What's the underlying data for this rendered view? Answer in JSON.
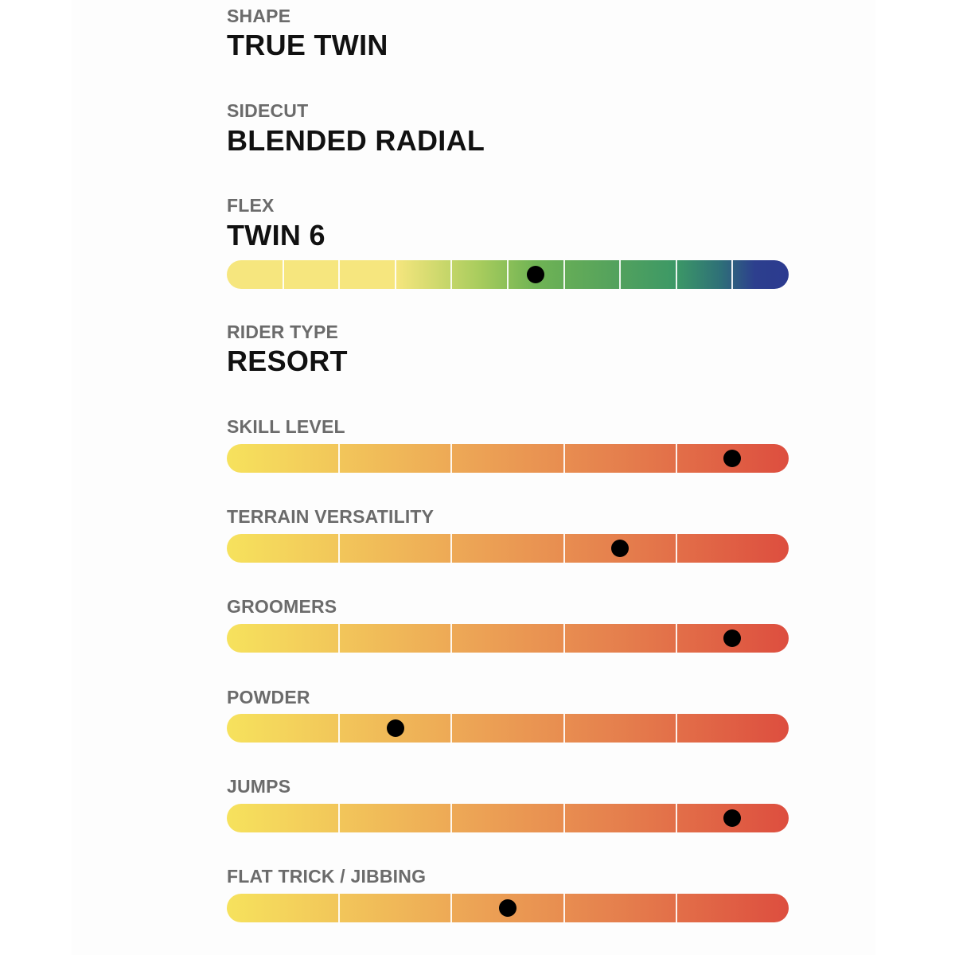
{
  "specs": [
    {
      "key": "shape",
      "label": "SHAPE",
      "value": "TRUE TWIN"
    },
    {
      "key": "sidecut",
      "label": "SIDECUT",
      "value": "BLENDED RADIAL"
    },
    {
      "key": "flex",
      "label": "FLEX",
      "value": "TWIN 6"
    },
    {
      "key": "rider_type",
      "label": "RIDER TYPE",
      "value": "RESORT"
    }
  ],
  "flex_scale": {
    "segments": 10,
    "position_fraction": 0.55,
    "colors": [
      "#f6e67e",
      "#6fb354",
      "#2b3a8f"
    ]
  },
  "ratings": [
    {
      "key": "skill_level",
      "label": "SKILL LEVEL",
      "segments": 5,
      "position_fraction": 0.9
    },
    {
      "key": "terrain_versatility",
      "label": "TERRAIN VERSATILITY",
      "segments": 5,
      "position_fraction": 0.7
    },
    {
      "key": "groomers",
      "label": "GROOMERS",
      "segments": 5,
      "position_fraction": 0.9
    },
    {
      "key": "powder",
      "label": "POWDER",
      "segments": 5,
      "position_fraction": 0.3
    },
    {
      "key": "jumps",
      "label": "JUMPS",
      "segments": 5,
      "position_fraction": 0.9
    },
    {
      "key": "flat_trick_jibbing",
      "label": "FLAT TRICK / JIBBING",
      "segments": 5,
      "position_fraction": 0.5
    }
  ],
  "rating_colors": [
    "#f6e25d",
    "#eca255",
    "#dd4e3f"
  ],
  "marker_color": "#000000"
}
